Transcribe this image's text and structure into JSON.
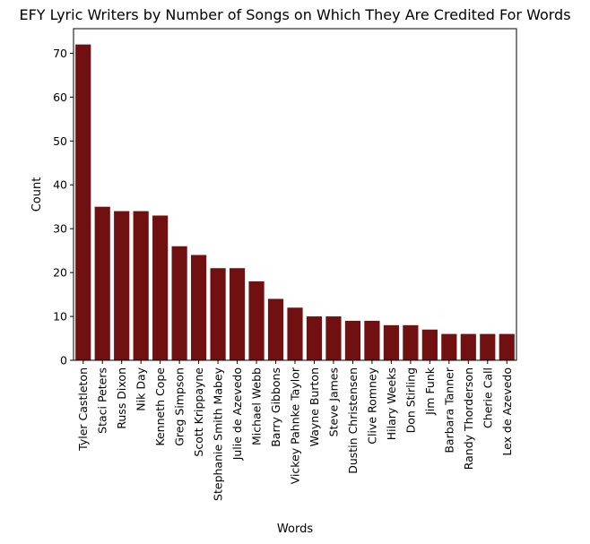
{
  "chart_data": {
    "type": "bar",
    "title": "EFY Lyric Writers by Number of Songs on Which They Are Credited For Words",
    "xlabel": "Words",
    "ylabel": "Count",
    "ylim": [
      0,
      75.6
    ],
    "yticks": [
      0,
      10,
      20,
      30,
      40,
      50,
      60,
      70
    ],
    "grid": false,
    "bar_color": "#711010",
    "categories": [
      "Tyler Castleton",
      "Staci Peters",
      "Russ Dixon",
      "Nik Day",
      "Kenneth Cope",
      "Greg Simpson",
      "Scott Krippayne",
      "Stephanie Smith Mabey",
      "Julie de Azevedo",
      "Michael Webb",
      "Barry Gibbons",
      "Vickey Pahnke Taylor",
      "Wayne Burton",
      "Steve James",
      "Dustin Christensen",
      "Clive Romney",
      "Hilary Weeks",
      "Don Stirling",
      "Jim Funk",
      "Barbara Tanner",
      "Randy Thorderson",
      "Cherie Call",
      "Lex de Azevedo"
    ],
    "values": [
      72,
      35,
      34,
      34,
      33,
      26,
      24,
      21,
      21,
      18,
      14,
      12,
      10,
      10,
      9,
      9,
      8,
      8,
      7,
      6,
      6,
      6,
      6
    ]
  }
}
